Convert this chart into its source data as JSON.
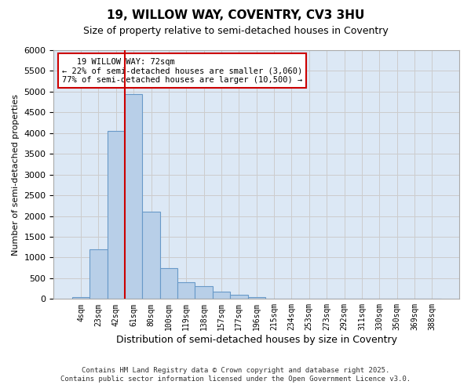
{
  "title": "19, WILLOW WAY, COVENTRY, CV3 3HU",
  "subtitle": "Size of property relative to semi-detached houses in Coventry",
  "xlabel": "Distribution of semi-detached houses by size in Coventry",
  "ylabel": "Number of semi-detached properties",
  "property_label": "19 WILLOW WAY: 72sqm",
  "pct_smaller": 22,
  "count_smaller": 3060,
  "pct_larger": 77,
  "count_larger": 10500,
  "bin_labels": [
    "4sqm",
    "23sqm",
    "42sqm",
    "61sqm",
    "80sqm",
    "100sqm",
    "119sqm",
    "138sqm",
    "157sqm",
    "177sqm",
    "196sqm",
    "215sqm",
    "234sqm",
    "253sqm",
    "273sqm",
    "292sqm",
    "311sqm",
    "330sqm",
    "350sqm",
    "369sqm",
    "388sqm"
  ],
  "bar_heights": [
    50,
    1200,
    4050,
    4950,
    2100,
    750,
    400,
    300,
    175,
    100,
    50,
    10,
    5,
    0,
    0,
    0,
    0,
    0,
    0,
    0,
    0
  ],
  "bar_color": "#b8cfe8",
  "bar_edge_color": "#6899c8",
  "vline_color": "#cc0000",
  "vline_x": 2.5,
  "ylim": [
    0,
    6000
  ],
  "yticks": [
    0,
    500,
    1000,
    1500,
    2000,
    2500,
    3000,
    3500,
    4000,
    4500,
    5000,
    5500,
    6000
  ],
  "grid_color": "#cccccc",
  "bg_color": "#dce8f5",
  "annotation_box_color": "#cc0000",
  "footer_line1": "Contains HM Land Registry data © Crown copyright and database right 2025.",
  "footer_line2": "Contains public sector information licensed under the Open Government Licence v3.0."
}
